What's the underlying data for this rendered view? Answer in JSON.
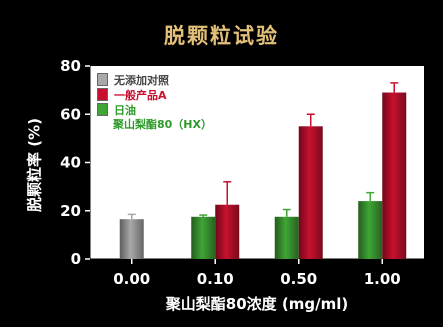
{
  "chart_data": {
    "type": "bar",
    "title": "脱颗粒试验",
    "xlabel": "聚山梨酯80浓度 (mg/ml)",
    "ylabel": "脱颗粒率 (%)",
    "ylim": [
      0,
      80
    ],
    "yticks": [
      0,
      20,
      40,
      60,
      80
    ],
    "categories": [
      "0.00",
      "0.10",
      "0.50",
      "1.00"
    ],
    "series": [
      {
        "name": "无添加对照",
        "color": "#a9a9a9",
        "values": [
          16.5,
          null,
          null,
          null
        ],
        "errors": [
          2,
          null,
          null,
          null
        ]
      },
      {
        "name": "一般产品A",
        "color": "#c8102e",
        "values": [
          null,
          22.5,
          55,
          69
        ],
        "errors": [
          null,
          9.5,
          5,
          4
        ]
      },
      {
        "name": "日油",
        "name_line2": "聚山梨酯80（HX）",
        "color": "#3fa535",
        "values": [
          null,
          17.5,
          17.5,
          24
        ],
        "errors": [
          null,
          0.7,
          3,
          3.5
        ]
      }
    ],
    "legend_placement": "top-left",
    "grid": false
  }
}
